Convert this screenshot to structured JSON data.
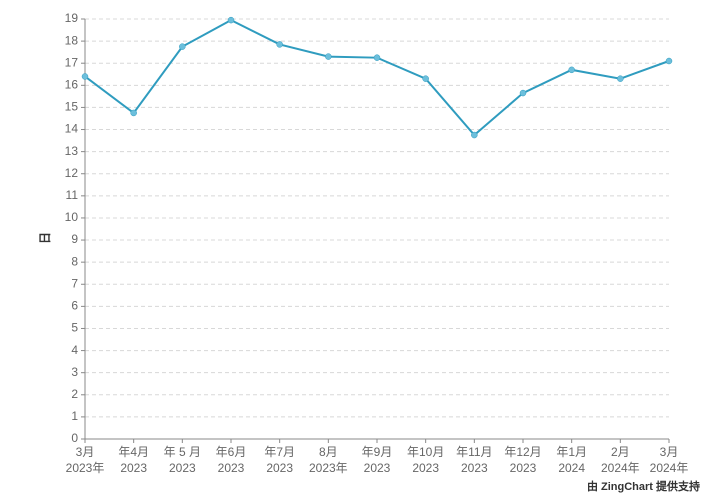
{
  "chart_data": {
    "type": "line",
    "y_label": "日",
    "credit": "由 ZingChart 提供支持",
    "categories": [
      [
        "3月",
        "2023年"
      ],
      [
        "年4月",
        "2023"
      ],
      [
        "年 5 月",
        "2023"
      ],
      [
        "年6月",
        "2023"
      ],
      [
        "年7月",
        "2023"
      ],
      [
        "8月",
        "2023年"
      ],
      [
        "年9月",
        "2023"
      ],
      [
        "年10月",
        "2023"
      ],
      [
        "年11月",
        "2023"
      ],
      [
        "年12月",
        "2023"
      ],
      [
        "年1月",
        "2024"
      ],
      [
        "2月",
        "2024年"
      ],
      [
        "3月",
        "2024年"
      ]
    ],
    "values": [
      16.4,
      14.75,
      17.75,
      18.95,
      17.85,
      17.3,
      17.25,
      16.3,
      13.75,
      15.65,
      16.7,
      16.3,
      17.1
    ],
    "color": "#2f9cbf",
    "marker_color": "#6cbfdc",
    "ylim": [
      0,
      19
    ],
    "yticks": [
      0,
      1,
      2,
      3,
      4,
      5,
      6,
      7,
      8,
      9,
      10,
      11,
      12,
      13,
      14,
      15,
      16,
      17,
      18,
      19
    ],
    "grid": true
  }
}
